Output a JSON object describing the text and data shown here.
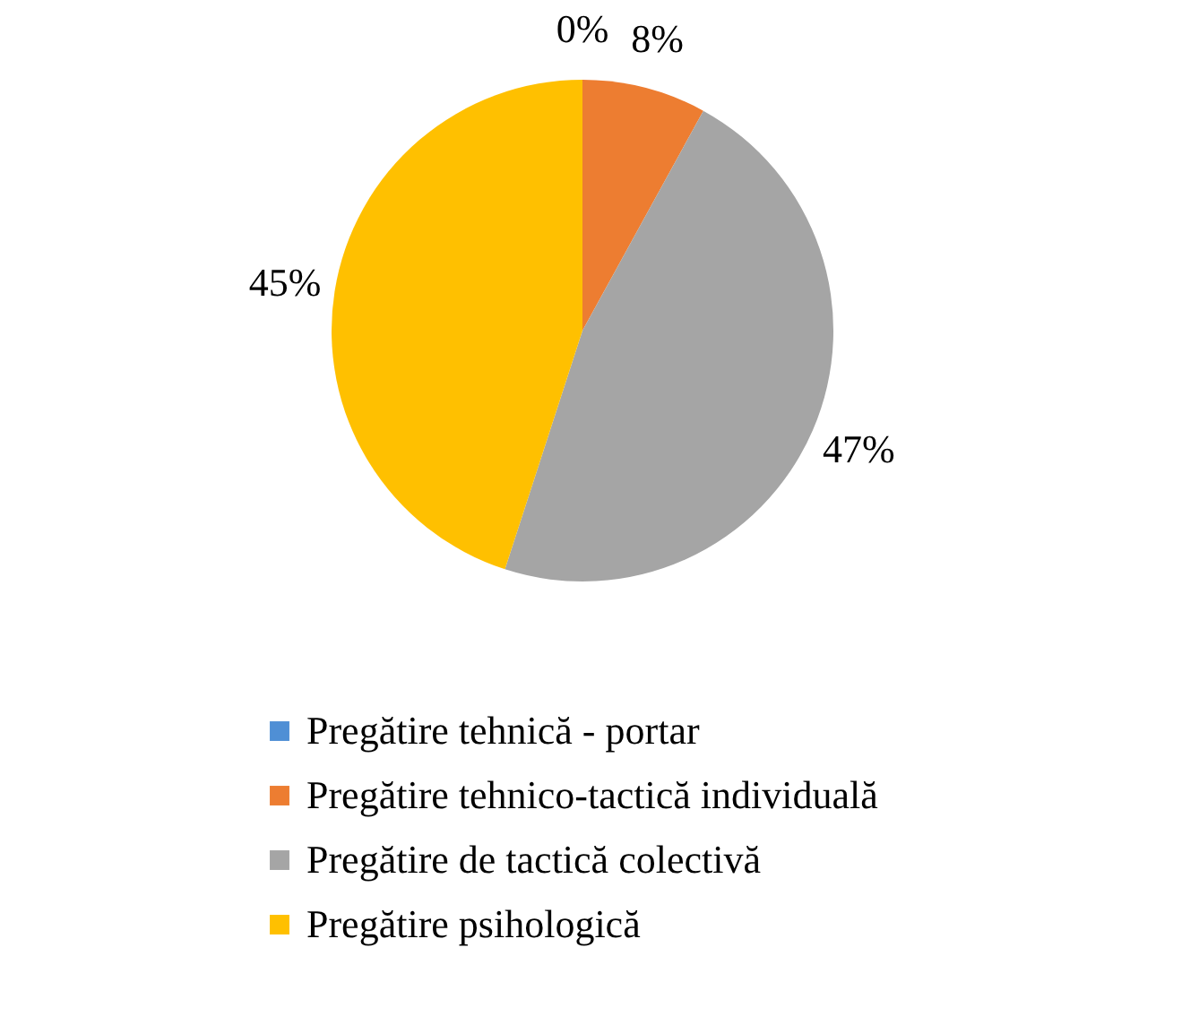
{
  "chart_data": {
    "type": "pie",
    "categories": [
      "Pregătire tehnică - portar",
      "Pregătire tehnico-tactică individuală",
      "Pregătire de tactică colectivă",
      "Pregătire psihologică"
    ],
    "values": [
      0,
      8,
      47,
      45
    ],
    "value_labels": [
      "0%",
      "8%",
      "47%",
      "45%"
    ],
    "colors": [
      "#4f8fd5",
      "#ed7d31",
      "#a5a5a5",
      "#ffc000"
    ],
    "legend": "bottom"
  }
}
